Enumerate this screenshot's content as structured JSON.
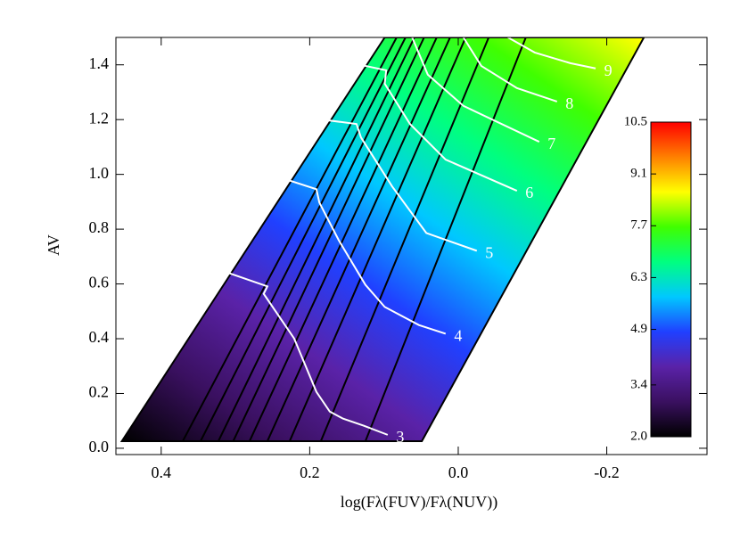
{
  "chart_data": {
    "type": "contour",
    "x_label": "log(Fλ(FUV)/Fλ(NUV))",
    "y_label": "AV",
    "xlim": [
      0.461,
      -0.335
    ],
    "ylim": [
      -0.023,
      1.5
    ],
    "xticks": [
      0.4,
      0.2,
      {
        "value": 0,
        "label": "0.0"
      },
      -0.2
    ],
    "yticks": [
      {
        "value": 0,
        "label": "0.0"
      },
      0.2,
      0.4,
      0.6,
      0.8,
      {
        "value": 1,
        "label": "1.0"
      },
      1.2,
      1.4
    ],
    "region": {
      "x": [
        0.453,
        0.049,
        -0.25,
        0.099
      ],
      "y": [
        0.026,
        0.026,
        1.5,
        1.5
      ]
    },
    "colormap": [
      "#000000",
      "#3a1060",
      "#5a22a8",
      "#2040ff",
      "#00c8ff",
      "#00ff80",
      "#40ff00",
      "#ffff00",
      "#ff8000",
      "#ff0000"
    ],
    "colorbar": {
      "lim": [
        2,
        10.5
      ],
      "ticks": [
        {
          "value": 2,
          "label": "2.0"
        },
        3.4,
        4.9,
        6.3,
        7.7,
        9.1,
        10.5
      ]
    },
    "lines": [
      {
        "x": [
          0.371,
          0.083
        ],
        "y": [
          0.026,
          1.5
        ]
      },
      {
        "x": [
          0.347,
          0.071
        ],
        "y": [
          0.026,
          1.5
        ]
      },
      {
        "x": [
          0.323,
          0.059
        ],
        "y": [
          0.026,
          1.5
        ]
      },
      {
        "x": [
          0.303,
          0.046
        ],
        "y": [
          0.026,
          1.5
        ]
      },
      {
        "x": [
          0.281,
          0.029
        ],
        "y": [
          0.026,
          1.5
        ]
      },
      {
        "x": [
          0.257,
          0.011
        ],
        "y": [
          0.026,
          1.5
        ]
      },
      {
        "x": [
          0.227,
          -0.01
        ],
        "y": [
          0.026,
          1.5
        ]
      },
      {
        "x": [
          0.185,
          -0.041
        ],
        "y": [
          0.026,
          1.5
        ]
      },
      {
        "x": [
          0.125,
          -0.091
        ],
        "y": [
          0.026,
          1.5
        ]
      }
    ],
    "contours": [
      {
        "level": 3,
        "x": [
          0.323,
          0.257,
          0.262,
          0.221,
          0.191,
          0.173,
          0.155,
          0.127,
          0.095
        ],
        "y": [
          0.653,
          0.591,
          0.564,
          0.401,
          0.206,
          0.134,
          0.108,
          0.082,
          0.049
        ]
      },
      {
        "level": 4,
        "x": [
          0.255,
          0.191,
          0.187,
          0.161,
          0.125,
          0.099,
          0.053,
          0.017
        ],
        "y": [
          1.002,
          0.946,
          0.897,
          0.76,
          0.597,
          0.516,
          0.45,
          0.418
        ]
      },
      {
        "level": 5,
        "x": [
          0.203,
          0.137,
          0.131,
          0.089,
          0.043,
          -0.025
        ],
        "y": [
          1.207,
          1.184,
          1.135,
          0.956,
          0.786,
          0.721
        ]
      },
      {
        "level": 6,
        "x": [
          0.137,
          0.097,
          0.099,
          0.065,
          0.017,
          -0.079
        ],
        "y": [
          1.403,
          1.38,
          1.331,
          1.184,
          1.054,
          0.94
        ]
      },
      {
        "level": 7,
        "x": [
          0.062,
          0.041,
          -0.007,
          -0.109
        ],
        "y": [
          1.5,
          1.364,
          1.25,
          1.119
        ]
      },
      {
        "level": 8,
        "x": [
          -0.007,
          -0.031,
          -0.079,
          -0.133
        ],
        "y": [
          1.5,
          1.396,
          1.315,
          1.266
        ]
      },
      {
        "level": 9,
        "x": [
          -0.067,
          -0.103,
          -0.151,
          -0.185
        ],
        "y": [
          1.5,
          1.445,
          1.406,
          1.387
        ]
      }
    ]
  }
}
